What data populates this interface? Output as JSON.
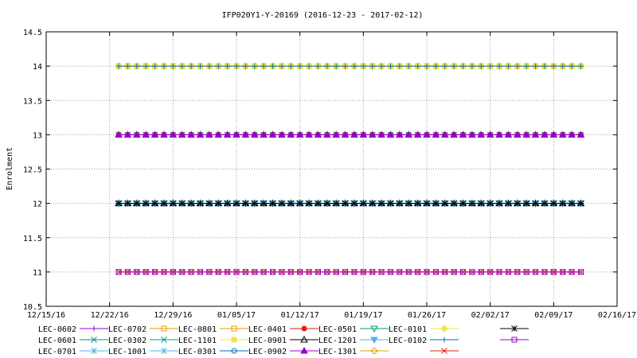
{
  "chart_data": {
    "type": "line",
    "title": "IFP020Y1-Y-20169 (2016-12-23 - 2017-02-12)",
    "xlabel": "",
    "ylabel": "Enrolment",
    "xlim": [
      "2016-12-15",
      "2017-02-16"
    ],
    "ylim": [
      10.5,
      14.5
    ],
    "x_ticks": [
      "12/15/16",
      "12/22/16",
      "12/29/16",
      "01/05/17",
      "01/12/17",
      "01/19/17",
      "01/26/17",
      "02/02/17",
      "02/09/17",
      "02/16/17"
    ],
    "y_ticks": [
      "10.5",
      "11",
      "11.5",
      "12",
      "12.5",
      "13",
      "13.5",
      "14",
      "14.5"
    ],
    "grid": true,
    "legend_position": "bottom",
    "date_range": [
      "2016-12-23",
      "2017-02-12"
    ],
    "series": [
      {
        "name": "LEC-0602",
        "value": 13,
        "color": "#9400d3",
        "marker": "plus"
      },
      {
        "name": "LEC-0601",
        "value": 13,
        "color": "#009e73",
        "marker": "cross"
      },
      {
        "name": "LEC-0701",
        "value": 12,
        "color": "#56b4e9",
        "marker": "star"
      },
      {
        "name": "LEC-0702",
        "value": 14,
        "color": "#e69f00",
        "marker": "square-open"
      },
      {
        "name": "LEC-0302",
        "value": 12,
        "color": "#00a080",
        "marker": "cross"
      },
      {
        "name": "LEC-1001",
        "value": 12,
        "color": "#56b4e9",
        "marker": "star"
      },
      {
        "name": "LEC-0801",
        "value": 11,
        "color": "#e69f00",
        "marker": "square-open"
      },
      {
        "name": "LEC-1101",
        "value": 14,
        "color": "#f0e442",
        "marker": "square-filled"
      },
      {
        "name": "LEC-0301",
        "value": 12,
        "color": "#0072b2",
        "marker": "circle-open"
      },
      {
        "name": "LEC-0401",
        "value": 13,
        "color": "#e51e10",
        "marker": "circle-filled"
      },
      {
        "name": "LEC-0901",
        "value": 12,
        "color": "#000000",
        "marker": "triangle-open"
      },
      {
        "name": "LEC-0902",
        "value": 13,
        "color": "#9400d3",
        "marker": "triangle-filled"
      },
      {
        "name": "LEC-0501",
        "value": 12,
        "color": "#009e73",
        "marker": "triangle-down-open"
      },
      {
        "name": "LEC-1201",
        "value": 12,
        "color": "#56b4e9",
        "marker": "triangle-down-filled"
      },
      {
        "name": "LEC-1301",
        "value": 14,
        "color": "#e69f00",
        "marker": "diamond-open"
      },
      {
        "name": "LEC-0101",
        "value": 14,
        "color": "#f0e442",
        "marker": "diamond-filled"
      },
      {
        "name": "LEC-0102",
        "value": 14,
        "color": "#0072b2",
        "marker": "plus"
      },
      {
        "name": "",
        "value": 11,
        "color": "#e51e10",
        "marker": "cross"
      },
      {
        "name": "",
        "value": 12,
        "color": "#000000",
        "marker": "star"
      },
      {
        "name": "",
        "value": 11,
        "color": "#9400d3",
        "marker": "square-open"
      }
    ]
  }
}
